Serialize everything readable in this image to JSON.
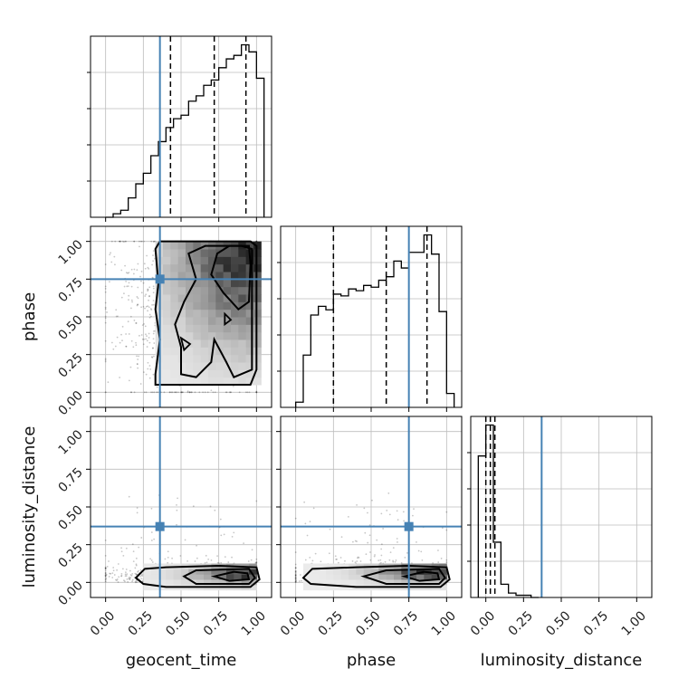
{
  "chart_data": {
    "type": "corner",
    "parameters": [
      "geocent_time",
      "phase",
      "luminosity_distance"
    ],
    "xlabels": [
      "geocent_time",
      "phase",
      "luminosity_distance"
    ],
    "ylabels": [
      "",
      "phase",
      "luminosity_distance"
    ],
    "ticks": [
      "0.00",
      "0.25",
      "0.50",
      "0.75",
      "1.00"
    ],
    "truths": {
      "geocent_time": 0.36,
      "phase": 0.75,
      "luminosity_distance": 0.37
    },
    "truth_color": "#4682b4",
    "grid": true,
    "histograms": {
      "geocent_time": {
        "range": [
          -0.05,
          1.05
        ],
        "quantiles": [
          0.43,
          0.72,
          0.93
        ],
        "bin_edges": [
          0.0,
          0.05,
          0.1,
          0.15,
          0.2,
          0.25,
          0.3,
          0.35,
          0.4,
          0.45,
          0.5,
          0.55,
          0.6,
          0.65,
          0.7,
          0.75,
          0.8,
          0.85,
          0.9,
          0.95,
          1.0,
          1.05
        ],
        "counts": [
          0.0,
          0.02,
          0.04,
          0.11,
          0.19,
          0.25,
          0.35,
          0.43,
          0.51,
          0.56,
          0.58,
          0.66,
          0.69,
          0.75,
          0.78,
          0.85,
          0.9,
          0.92,
          0.98,
          0.94,
          0.79
        ]
      },
      "phase": {
        "range": [
          -0.05,
          1.05
        ],
        "quantiles": [
          0.25,
          0.6,
          0.87
        ],
        "bin_edges": [
          0.0,
          0.05,
          0.1,
          0.15,
          0.2,
          0.25,
          0.3,
          0.35,
          0.4,
          0.45,
          0.5,
          0.55,
          0.6,
          0.65,
          0.7,
          0.75,
          0.8,
          0.85,
          0.9,
          0.95,
          1.0,
          1.05
        ],
        "counts": [
          0.03,
          0.3,
          0.53,
          0.58,
          0.56,
          0.65,
          0.64,
          0.68,
          0.67,
          0.7,
          0.69,
          0.73,
          0.75,
          0.84,
          0.8,
          0.89,
          0.89,
          0.99,
          0.88,
          0.55,
          0.08
        ]
      },
      "luminosity_distance": {
        "range": [
          -0.05,
          1.05
        ],
        "quantiles": [
          0.0,
          0.03,
          0.06
        ],
        "bin_edges": [
          -0.05,
          0.0,
          0.05,
          0.1,
          0.15,
          0.2,
          0.25,
          0.3,
          0.35
        ],
        "counts": [
          0.64,
          0.78,
          0.25,
          0.06,
          0.02,
          0.01,
          0.01,
          0.0
        ]
      }
    },
    "scatter_2d": [
      {
        "x": "geocent_time",
        "y": "phase",
        "density_peak": [
          0.92,
          0.94
        ]
      },
      {
        "x": "geocent_time",
        "y": "luminosity_distance",
        "density_peak": [
          0.95,
          0.04
        ]
      },
      {
        "x": "phase",
        "y": "luminosity_distance",
        "density_peak": [
          0.88,
          0.05
        ]
      }
    ]
  }
}
